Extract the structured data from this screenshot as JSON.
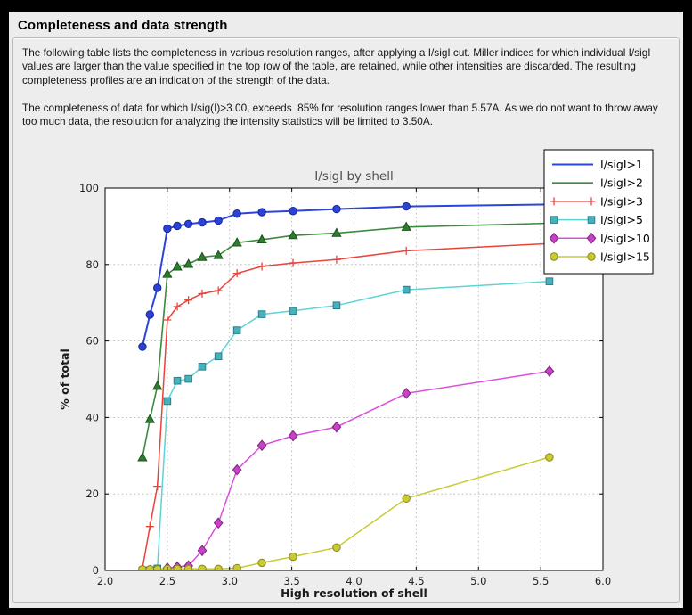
{
  "window": {
    "title": "Completeness and data strength"
  },
  "paragraphs": [
    "The following table lists the completeness in various resolution ranges, after applying a I/sigI cut. Miller indices for which individual I/sigI values are larger than the value specified in the top row of the table, are retained, while other intensities are discarded. The resulting completeness profiles are an indication of the strength of the data.",
    "The completeness of data for which I/sig(I)>3.00, exceeds  85% for resolution ranges lower than 5.57A. As we do not want to throw away too much data, the resolution for analyzing the intensity statistics will be limited to 3.50A."
  ],
  "chart_data": {
    "type": "line",
    "title": "I/sigI by shell",
    "xlabel": "High resolution of shell",
    "ylabel": "% of total",
    "xlim": [
      2.0,
      6.0
    ],
    "ylim": [
      0,
      100
    ],
    "grid": true,
    "legend_position": "upper right",
    "xticks": [
      2.0,
      2.5,
      3.0,
      3.5,
      4.0,
      4.5,
      5.0,
      5.5,
      6.0
    ],
    "xtick_labels": [
      "2.0",
      "2.5",
      "3.0",
      "3.5",
      "4.0",
      "4.5",
      "5.0",
      "5.5",
      "6.0"
    ],
    "yticks": [
      0,
      20,
      40,
      60,
      80,
      100
    ],
    "ytick_labels": [
      "0",
      "20",
      "40",
      "60",
      "80",
      "100"
    ],
    "x": [
      2.3,
      2.36,
      2.42,
      2.5,
      2.58,
      2.67,
      2.78,
      2.91,
      3.06,
      3.26,
      3.51,
      3.86,
      4.42,
      5.57
    ],
    "series": [
      {
        "name": "I/sigI>1",
        "marker": "circle",
        "legend_markers": false,
        "color": "#2c44d8",
        "fill": "#2b42d4",
        "edge": "#16279c",
        "line_width": 2.0,
        "values": [
          58.5,
          66.9,
          73.9,
          89.4,
          90.1,
          90.6,
          91.0,
          91.5,
          93.3,
          93.7,
          94.0,
          94.5,
          95.2,
          95.7
        ]
      },
      {
        "name": "I/sigI>2",
        "marker": "triangle",
        "legend_markers": false,
        "color": "#3c8a3c",
        "fill": "#2e7d2e",
        "edge": "#1c511c",
        "line_width": 1.6,
        "values": [
          29.5,
          39.5,
          48.2,
          77.5,
          79.4,
          80.1,
          81.9,
          82.4,
          85.7,
          86.5,
          87.6,
          88.2,
          89.8,
          90.8
        ]
      },
      {
        "name": "I/sigI>3",
        "marker": "plus",
        "legend_markers": true,
        "color": "#e8443a",
        "fill": "none",
        "edge": "#e8443a",
        "line_width": 1.5,
        "values": [
          0.5,
          11.5,
          22.0,
          65.5,
          69.0,
          70.7,
          72.4,
          73.2,
          77.7,
          79.5,
          80.4,
          81.3,
          83.6,
          85.5
        ]
      },
      {
        "name": "I/sigI>5",
        "marker": "square",
        "legend_markers": true,
        "color": "#5ed3d3",
        "fill": "#48b2bc",
        "edge": "#27808b",
        "line_width": 1.5,
        "values": [
          0.0,
          0.0,
          0.5,
          44.3,
          49.6,
          50.1,
          53.3,
          56.0,
          62.8,
          67.0,
          67.9,
          69.3,
          73.4,
          75.6
        ]
      },
      {
        "name": "I/sigI>10",
        "marker": "diamond",
        "legend_markers": true,
        "color": "#da50da",
        "fill": "#c643c6",
        "edge": "#7e1f7e",
        "line_width": 1.5,
        "values": [
          0.0,
          0.0,
          0.0,
          0.6,
          0.9,
          1.2,
          5.2,
          12.4,
          26.3,
          32.7,
          35.2,
          37.5,
          46.3,
          52.1
        ]
      },
      {
        "name": "I/sigI>15",
        "marker": "circle",
        "legend_markers": true,
        "color": "#caca33",
        "fill": "#caca33",
        "edge": "#85851c",
        "line_width": 1.5,
        "values": [
          0.3,
          0.3,
          0.3,
          0.4,
          0.4,
          0.4,
          0.4,
          0.4,
          0.6,
          2.0,
          3.6,
          6.0,
          18.8,
          29.6
        ]
      }
    ]
  }
}
